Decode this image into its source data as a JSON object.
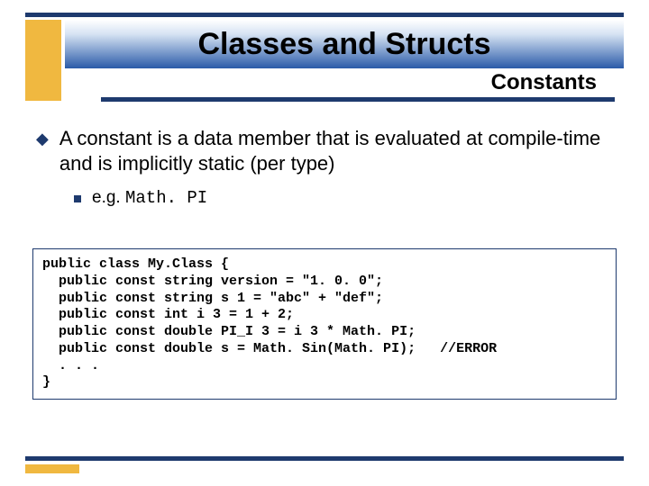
{
  "colors": {
    "rule": "#1e3a6e",
    "gold": "#f0b840",
    "gradient_top": "#ffffff",
    "gradient_mid": "#d5e2f3",
    "gradient_bottom": "#2a5aa8",
    "text": "#000000",
    "background": "#ffffff"
  },
  "title": {
    "main": "Classes and Structs",
    "subtitle": "Constants",
    "title_fontsize": 34,
    "subtitle_fontsize": 24
  },
  "bullets": {
    "level1_marker": "◆",
    "item1": "A constant is a data member that is evaluated at compile-time and is implicitly static (per type)",
    "item1_fontsize": 22,
    "sub1_prefix": "e.g. ",
    "sub1_code": "Math. PI",
    "sub1_fontsize": 19
  },
  "code": {
    "fontsize": 15,
    "font_family": "Courier New",
    "lines": [
      "public class My.Class {",
      "  public const string version = \"1. 0. 0\";",
      "  public const string s 1 = \"abc\" + \"def\";",
      "  public const int i 3 = 1 + 2;",
      "  public const double PI_I 3 = i 3 * Math. PI;",
      "  public const double s = Math. Sin(Math. PI);   //ERROR",
      "  . . .",
      "}"
    ]
  }
}
